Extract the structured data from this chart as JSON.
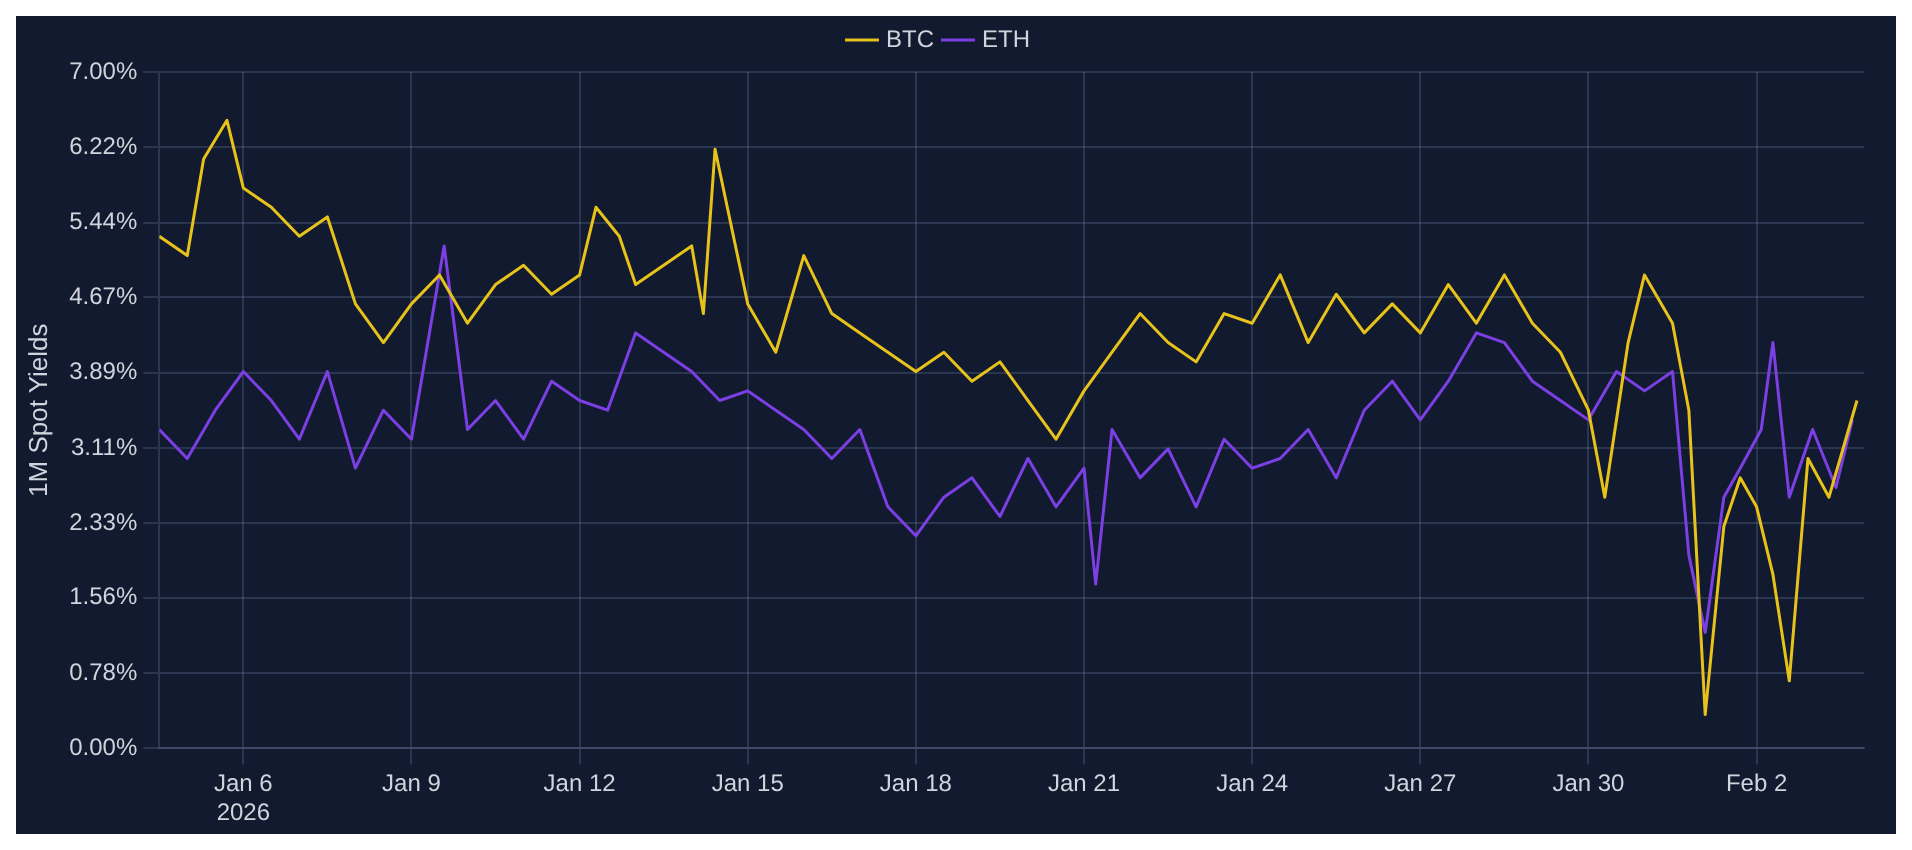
{
  "chart_data": {
    "type": "line",
    "ylabel": "1M Spot Yields",
    "legend": "top",
    "grid": true,
    "marker": "none",
    "line_style": "solid",
    "xlim": [
      "2026-01-04T12:00",
      "2026-02-03T22:00"
    ],
    "xticks": [
      {
        "value": "2026-01-06",
        "label": "Jan 6\n2026"
      },
      {
        "value": "2026-01-09",
        "label": "Jan 9"
      },
      {
        "value": "2026-01-12",
        "label": "Jan 12"
      },
      {
        "value": "2026-01-15",
        "label": "Jan 15"
      },
      {
        "value": "2026-01-18",
        "label": "Jan 18"
      },
      {
        "value": "2026-01-21",
        "label": "Jan 21"
      },
      {
        "value": "2026-01-24",
        "label": "Jan 24"
      },
      {
        "value": "2026-01-27",
        "label": "Jan 27"
      },
      {
        "value": "2026-01-30",
        "label": "Jan 30"
      },
      {
        "value": "2026-02-02",
        "label": "Feb 2"
      }
    ],
    "ylim": [
      0,
      7
    ],
    "yticks": [
      {
        "value": 0,
        "label": "0.00%"
      },
      {
        "value": 0.78,
        "label": "0.78%"
      },
      {
        "value": 1.56,
        "label": "1.56%"
      },
      {
        "value": 2.33,
        "label": "2.33%"
      },
      {
        "value": 3.11,
        "label": "3.11%"
      },
      {
        "value": 3.89,
        "label": "3.89%"
      },
      {
        "value": 4.67,
        "label": "4.67%"
      },
      {
        "value": 5.44,
        "label": "5.44%"
      },
      {
        "value": 6.22,
        "label": "6.22%"
      },
      {
        "value": 7,
        "label": "7.00%"
      }
    ],
    "series": [
      {
        "name": "BTC",
        "color": "#e6c21a",
        "x": [
          "2026-01-04T12:00",
          "2026-01-05",
          "2026-01-05T07:00",
          "2026-01-05T17:00",
          "2026-01-06",
          "2026-01-06T12:00",
          "2026-01-07",
          "2026-01-07T12:00",
          "2026-01-08",
          "2026-01-08T12:00",
          "2026-01-09",
          "2026-01-09T12:00",
          "2026-01-10",
          "2026-01-10T12:00",
          "2026-01-11",
          "2026-01-11T12:00",
          "2026-01-12",
          "2026-01-12T07:00",
          "2026-01-12T17:00",
          "2026-01-13",
          "2026-01-13T12:00",
          "2026-01-14",
          "2026-01-14T05:00",
          "2026-01-14T10:00",
          "2026-01-15",
          "2026-01-15T12:00",
          "2026-01-16",
          "2026-01-16T12:00",
          "2026-01-17",
          "2026-01-17T12:00",
          "2026-01-18",
          "2026-01-18T12:00",
          "2026-01-19",
          "2026-01-19T12:00",
          "2026-01-20",
          "2026-01-20T12:00",
          "2026-01-21",
          "2026-01-21T12:00",
          "2026-01-22",
          "2026-01-22T12:00",
          "2026-01-23",
          "2026-01-23T12:00",
          "2026-01-24",
          "2026-01-24T12:00",
          "2026-01-25",
          "2026-01-25T12:00",
          "2026-01-26",
          "2026-01-26T12:00",
          "2026-01-27",
          "2026-01-27T12:00",
          "2026-01-28",
          "2026-01-28T12:00",
          "2026-01-29",
          "2026-01-29T12:00",
          "2026-01-30",
          "2026-01-30T07:00",
          "2026-01-30T17:00",
          "2026-01-31",
          "2026-01-31T12:00",
          "2026-01-31T19:00",
          "2026-02-01T02:00",
          "2026-02-01T10:00",
          "2026-02-01T17:00",
          "2026-02-02",
          "2026-02-02T07:00",
          "2026-02-02T14:00",
          "2026-02-02T22:00",
          "2026-02-03T07:00",
          "2026-02-03T19:00"
        ],
        "values": [
          5.3,
          5.1,
          6.1,
          6.5,
          5.8,
          5.6,
          5.3,
          5.5,
          4.6,
          4.2,
          4.6,
          4.9,
          4.4,
          4.8,
          5.0,
          4.7,
          4.9,
          5.6,
          5.3,
          4.8,
          5.0,
          5.2,
          4.5,
          6.2,
          4.6,
          4.1,
          5.1,
          4.5,
          4.3,
          4.1,
          3.9,
          4.1,
          3.8,
          4.0,
          3.6,
          3.2,
          3.7,
          4.1,
          4.5,
          4.2,
          4.0,
          4.5,
          4.4,
          4.9,
          4.2,
          4.7,
          4.3,
          4.6,
          4.3,
          4.8,
          4.4,
          4.9,
          4.4,
          4.1,
          3.5,
          2.6,
          4.2,
          4.9,
          4.4,
          3.5,
          0.35,
          2.3,
          2.8,
          2.5,
          1.8,
          0.7,
          3.0,
          2.6,
          3.6
        ]
      },
      {
        "name": "ETH",
        "color": "#7b3fe4",
        "x": [
          "2026-01-04T12:00",
          "2026-01-05",
          "2026-01-05T12:00",
          "2026-01-06",
          "2026-01-06T12:00",
          "2026-01-07",
          "2026-01-07T12:00",
          "2026-01-08",
          "2026-01-08T12:00",
          "2026-01-09",
          "2026-01-09T14:00",
          "2026-01-10",
          "2026-01-10T12:00",
          "2026-01-11",
          "2026-01-11T12:00",
          "2026-01-12",
          "2026-01-12T12:00",
          "2026-01-13",
          "2026-01-13T12:00",
          "2026-01-14",
          "2026-01-14T12:00",
          "2026-01-15",
          "2026-01-15T12:00",
          "2026-01-16",
          "2026-01-16T12:00",
          "2026-01-17",
          "2026-01-17T12:00",
          "2026-01-18",
          "2026-01-18T12:00",
          "2026-01-19",
          "2026-01-19T12:00",
          "2026-01-20",
          "2026-01-20T12:00",
          "2026-01-21",
          "2026-01-21T05:00",
          "2026-01-21T12:00",
          "2026-01-22",
          "2026-01-22T12:00",
          "2026-01-23",
          "2026-01-23T12:00",
          "2026-01-24",
          "2026-01-24T12:00",
          "2026-01-25",
          "2026-01-25T12:00",
          "2026-01-26",
          "2026-01-26T12:00",
          "2026-01-27",
          "2026-01-27T12:00",
          "2026-01-28",
          "2026-01-28T12:00",
          "2026-01-29",
          "2026-01-29T12:00",
          "2026-01-30",
          "2026-01-30T12:00",
          "2026-01-31",
          "2026-01-31T12:00",
          "2026-01-31T19:00",
          "2026-02-01T02:00",
          "2026-02-01T10:00",
          "2026-02-01T17:00",
          "2026-02-02T02:00",
          "2026-02-02T07:00",
          "2026-02-02T14:00",
          "2026-02-03",
          "2026-02-03T10:00",
          "2026-02-03T17:00"
        ],
        "values": [
          3.3,
          3.0,
          3.5,
          3.9,
          3.6,
          3.2,
          3.9,
          2.9,
          3.5,
          3.2,
          5.2,
          3.3,
          3.6,
          3.2,
          3.8,
          3.6,
          3.5,
          4.3,
          4.1,
          3.9,
          3.6,
          3.7,
          3.5,
          3.3,
          3.0,
          3.3,
          2.5,
          2.2,
          2.6,
          2.8,
          2.4,
          3.0,
          2.5,
          2.9,
          1.7,
          3.3,
          2.8,
          3.1,
          2.5,
          3.2,
          2.9,
          3.0,
          3.3,
          2.8,
          3.5,
          3.8,
          3.4,
          3.8,
          4.3,
          4.2,
          3.8,
          3.6,
          3.4,
          3.9,
          3.7,
          3.9,
          2.0,
          1.2,
          2.6,
          2.9,
          3.3,
          4.2,
          2.6,
          3.3,
          2.7,
          3.4
        ]
      }
    ]
  }
}
